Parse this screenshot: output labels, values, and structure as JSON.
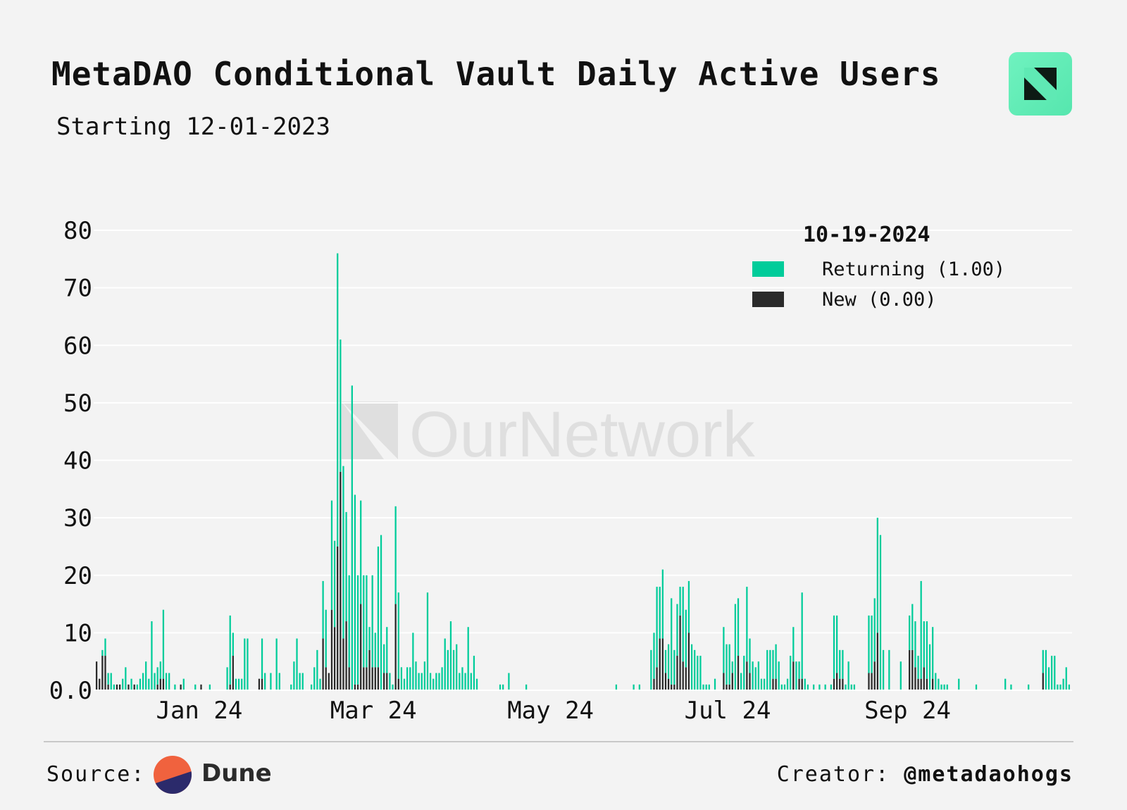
{
  "header": {
    "title": "MetaDAO Conditional Vault Daily Active Users",
    "subtitle": "Starting 12-01-2023",
    "logo_icon": "ournetwork-logo-icon"
  },
  "watermark": {
    "text": "OurNetwork"
  },
  "colors": {
    "returning": "#00cc9a",
    "new": "#2a2a2a",
    "background": "#f3f3f3",
    "grid": "#ffffff"
  },
  "legend": {
    "title": "10-19-2024",
    "items": [
      {
        "label": "Returning (1.00)",
        "color": "#00cc9a"
      },
      {
        "label": "New (0.00)",
        "color": "#2a2a2a"
      }
    ]
  },
  "footer": {
    "source_label": "Source:",
    "source_name": "Dune",
    "creator_label": "Creator:",
    "creator_handle": "@metadaohogs"
  },
  "chart_data": {
    "type": "bar",
    "stacked": true,
    "title": "MetaDAO Conditional Vault Daily Active Users",
    "subtitle": "Starting 12-01-2023",
    "xlabel": "",
    "ylabel": "",
    "ylim": [
      0,
      80
    ],
    "yticks": [
      "0.0",
      "10",
      "20",
      "30",
      "40",
      "50",
      "60",
      "70",
      "80"
    ],
    "xticks": [
      {
        "label": "Jan 24",
        "date": "2024-01-01"
      },
      {
        "label": "Mar 24",
        "date": "2024-03-01"
      },
      {
        "label": "May 24",
        "date": "2024-05-01"
      },
      {
        "label": "Jul 24",
        "date": "2024-07-01"
      },
      {
        "label": "Sep 24",
        "date": "2024-09-01"
      }
    ],
    "grid": true,
    "legend_position": "top-right",
    "series_names": [
      "Returning",
      "New"
    ],
    "points": [
      [
        "2023-12-01",
        0,
        5
      ],
      [
        "2023-12-02",
        0,
        2
      ],
      [
        "2023-12-03",
        1,
        6
      ],
      [
        "2023-12-04",
        3,
        6
      ],
      [
        "2023-12-05",
        2,
        1
      ],
      [
        "2023-12-06",
        3,
        0
      ],
      [
        "2023-12-07",
        1,
        0
      ],
      [
        "2023-12-08",
        0,
        1
      ],
      [
        "2023-12-09",
        0,
        1
      ],
      [
        "2023-12-10",
        2,
        0
      ],
      [
        "2023-12-11",
        4,
        0
      ],
      [
        "2023-12-12",
        0,
        1
      ],
      [
        "2023-12-13",
        2,
        0
      ],
      [
        "2023-12-14",
        0,
        1
      ],
      [
        "2023-12-15",
        1,
        0
      ],
      [
        "2023-12-16",
        2,
        0
      ],
      [
        "2023-12-17",
        3,
        0
      ],
      [
        "2023-12-18",
        5,
        0
      ],
      [
        "2023-12-19",
        2,
        0
      ],
      [
        "2023-12-20",
        12,
        0
      ],
      [
        "2023-12-21",
        3,
        0
      ],
      [
        "2023-12-22",
        3,
        1
      ],
      [
        "2023-12-23",
        3,
        2
      ],
      [
        "2023-12-24",
        12,
        2
      ],
      [
        "2023-12-25",
        3,
        0
      ],
      [
        "2023-12-26",
        3,
        0
      ],
      [
        "2023-12-28",
        1,
        0
      ],
      [
        "2023-12-30",
        0,
        1
      ],
      [
        "2023-12-31",
        2,
        0
      ],
      [
        "2024-01-04",
        1,
        0
      ],
      [
        "2024-01-06",
        0,
        1
      ],
      [
        "2024-01-09",
        1,
        0
      ],
      [
        "2024-01-15",
        4,
        0
      ],
      [
        "2024-01-16",
        12,
        1
      ],
      [
        "2024-01-17",
        4,
        6
      ],
      [
        "2024-01-18",
        2,
        0
      ],
      [
        "2024-01-19",
        2,
        0
      ],
      [
        "2024-01-20",
        2,
        0
      ],
      [
        "2024-01-21",
        9,
        0
      ],
      [
        "2024-01-22",
        9,
        0
      ],
      [
        "2024-01-26",
        0,
        2
      ],
      [
        "2024-01-27",
        7,
        2
      ],
      [
        "2024-01-28",
        3,
        0
      ],
      [
        "2024-01-30",
        3,
        0
      ],
      [
        "2024-02-01",
        9,
        0
      ],
      [
        "2024-02-02",
        3,
        0
      ],
      [
        "2024-02-06",
        1,
        0
      ],
      [
        "2024-02-07",
        5,
        0
      ],
      [
        "2024-02-08",
        9,
        0
      ],
      [
        "2024-02-09",
        3,
        0
      ],
      [
        "2024-02-10",
        3,
        0
      ],
      [
        "2024-02-13",
        1,
        0
      ],
      [
        "2024-02-14",
        4,
        0
      ],
      [
        "2024-02-15",
        7,
        0
      ],
      [
        "2024-02-16",
        2,
        0
      ],
      [
        "2024-02-17",
        10,
        9
      ],
      [
        "2024-02-18",
        10,
        4
      ],
      [
        "2024-02-19",
        0,
        3
      ],
      [
        "2024-02-20",
        19,
        14
      ],
      [
        "2024-02-21",
        15,
        11
      ],
      [
        "2024-02-22",
        51,
        25
      ],
      [
        "2024-02-23",
        23,
        38
      ],
      [
        "2024-02-24",
        30,
        9
      ],
      [
        "2024-02-25",
        19,
        12
      ],
      [
        "2024-02-26",
        16,
        4
      ],
      [
        "2024-02-27",
        53,
        0
      ],
      [
        "2024-02-28",
        33,
        1
      ],
      [
        "2024-02-29",
        19,
        1
      ],
      [
        "2024-03-01",
        18,
        15
      ],
      [
        "2024-03-02",
        16,
        4
      ],
      [
        "2024-03-03",
        16,
        4
      ],
      [
        "2024-03-04",
        4,
        7
      ],
      [
        "2024-03-05",
        16,
        4
      ],
      [
        "2024-03-06",
        6,
        4
      ],
      [
        "2024-03-07",
        21,
        4
      ],
      [
        "2024-03-08",
        27,
        0
      ],
      [
        "2024-03-09",
        5,
        3
      ],
      [
        "2024-03-10",
        8,
        3
      ],
      [
        "2024-03-11",
        3,
        0
      ],
      [
        "2024-03-12",
        1,
        0
      ],
      [
        "2024-03-13",
        17,
        15
      ],
      [
        "2024-03-14",
        15,
        2
      ],
      [
        "2024-03-15",
        4,
        0
      ],
      [
        "2024-03-16",
        2,
        0
      ],
      [
        "2024-03-17",
        4,
        0
      ],
      [
        "2024-03-18",
        4,
        0
      ],
      [
        "2024-03-19",
        10,
        0
      ],
      [
        "2024-03-20",
        5,
        0
      ],
      [
        "2024-03-21",
        3,
        0
      ],
      [
        "2024-03-22",
        3,
        0
      ],
      [
        "2024-03-23",
        5,
        0
      ],
      [
        "2024-03-24",
        17,
        0
      ],
      [
        "2024-03-25",
        3,
        0
      ],
      [
        "2024-03-26",
        2,
        0
      ],
      [
        "2024-03-27",
        3,
        0
      ],
      [
        "2024-03-28",
        3,
        0
      ],
      [
        "2024-03-29",
        4,
        0
      ],
      [
        "2024-03-30",
        9,
        0
      ],
      [
        "2024-03-31",
        7,
        0
      ],
      [
        "2024-04-01",
        12,
        0
      ],
      [
        "2024-04-02",
        7,
        0
      ],
      [
        "2024-04-03",
        8,
        0
      ],
      [
        "2024-04-04",
        3,
        0
      ],
      [
        "2024-04-05",
        4,
        0
      ],
      [
        "2024-04-06",
        3,
        0
      ],
      [
        "2024-04-07",
        11,
        0
      ],
      [
        "2024-04-08",
        3,
        0
      ],
      [
        "2024-04-09",
        6,
        0
      ],
      [
        "2024-04-10",
        2,
        0
      ],
      [
        "2024-04-18",
        1,
        0
      ],
      [
        "2024-04-19",
        1,
        0
      ],
      [
        "2024-04-21",
        3,
        0
      ],
      [
        "2024-04-27",
        1,
        0
      ],
      [
        "2024-05-28",
        1,
        0
      ],
      [
        "2024-06-03",
        1,
        0
      ],
      [
        "2024-06-05",
        1,
        0
      ],
      [
        "2024-06-09",
        7,
        0
      ],
      [
        "2024-06-10",
        8,
        2
      ],
      [
        "2024-06-11",
        14,
        4
      ],
      [
        "2024-06-12",
        9,
        9
      ],
      [
        "2024-06-13",
        12,
        9
      ],
      [
        "2024-06-14",
        4,
        3
      ],
      [
        "2024-06-15",
        6,
        2
      ],
      [
        "2024-06-16",
        15,
        1
      ],
      [
        "2024-06-17",
        6,
        1
      ],
      [
        "2024-06-18",
        9,
        6
      ],
      [
        "2024-06-19",
        5,
        13
      ],
      [
        "2024-06-20",
        13,
        5
      ],
      [
        "2024-06-21",
        10,
        4
      ],
      [
        "2024-06-22",
        9,
        10
      ],
      [
        "2024-06-23",
        8,
        0
      ],
      [
        "2024-06-24",
        7,
        0
      ],
      [
        "2024-06-25",
        6,
        0
      ],
      [
        "2024-06-26",
        6,
        0
      ],
      [
        "2024-06-27",
        1,
        0
      ],
      [
        "2024-06-28",
        1,
        0
      ],
      [
        "2024-06-29",
        1,
        0
      ],
      [
        "2024-07-01",
        2,
        0
      ],
      [
        "2024-07-04",
        8,
        3
      ],
      [
        "2024-07-05",
        7,
        1
      ],
      [
        "2024-07-06",
        7,
        1
      ],
      [
        "2024-07-07",
        2,
        3
      ],
      [
        "2024-07-08",
        15,
        0
      ],
      [
        "2024-07-09",
        10,
        6
      ],
      [
        "2024-07-10",
        3,
        0
      ],
      [
        "2024-07-11",
        6,
        0
      ],
      [
        "2024-07-12",
        13,
        5
      ],
      [
        "2024-07-13",
        6,
        3
      ],
      [
        "2024-07-14",
        5,
        0
      ],
      [
        "2024-07-15",
        4,
        0
      ],
      [
        "2024-07-16",
        5,
        0
      ],
      [
        "2024-07-17",
        2,
        0
      ],
      [
        "2024-07-18",
        2,
        0
      ],
      [
        "2024-07-19",
        7,
        0
      ],
      [
        "2024-07-20",
        7,
        0
      ],
      [
        "2024-07-21",
        5,
        2
      ],
      [
        "2024-07-22",
        6,
        2
      ],
      [
        "2024-07-23",
        5,
        0
      ],
      [
        "2024-07-24",
        1,
        0
      ],
      [
        "2024-07-25",
        1,
        0
      ],
      [
        "2024-07-26",
        2,
        0
      ],
      [
        "2024-07-27",
        6,
        0
      ],
      [
        "2024-07-28",
        6,
        5
      ],
      [
        "2024-07-29",
        5,
        0
      ],
      [
        "2024-07-30",
        3,
        2
      ],
      [
        "2024-07-31",
        15,
        2
      ],
      [
        "2024-08-01",
        2,
        0
      ],
      [
        "2024-08-02",
        1,
        0
      ],
      [
        "2024-08-04",
        1,
        0
      ],
      [
        "2024-08-06",
        1,
        0
      ],
      [
        "2024-08-08",
        1,
        0
      ],
      [
        "2024-08-10",
        1,
        0
      ],
      [
        "2024-08-11",
        11,
        2
      ],
      [
        "2024-08-12",
        10,
        3
      ],
      [
        "2024-08-13",
        5,
        2
      ],
      [
        "2024-08-14",
        5,
        2
      ],
      [
        "2024-08-15",
        1,
        0
      ],
      [
        "2024-08-16",
        5,
        0
      ],
      [
        "2024-08-17",
        1,
        0
      ],
      [
        "2024-08-18",
        1,
        0
      ],
      [
        "2024-08-23",
        10,
        3
      ],
      [
        "2024-08-24",
        10,
        3
      ],
      [
        "2024-08-25",
        11,
        5
      ],
      [
        "2024-08-26",
        20,
        10
      ],
      [
        "2024-08-27",
        27,
        0
      ],
      [
        "2024-08-28",
        7,
        0
      ],
      [
        "2024-08-30",
        7,
        0
      ],
      [
        "2024-09-03",
        5,
        0
      ],
      [
        "2024-09-06",
        6,
        7
      ],
      [
        "2024-09-07",
        8,
        7
      ],
      [
        "2024-09-08",
        8,
        4
      ],
      [
        "2024-09-09",
        4,
        2
      ],
      [
        "2024-09-10",
        17,
        2
      ],
      [
        "2024-09-11",
        8,
        4
      ],
      [
        "2024-09-12",
        10,
        2
      ],
      [
        "2024-09-13",
        8,
        0
      ],
      [
        "2024-09-14",
        9,
        2
      ],
      [
        "2024-09-15",
        3,
        0
      ],
      [
        "2024-09-16",
        2,
        0
      ],
      [
        "2024-09-17",
        1,
        0
      ],
      [
        "2024-09-18",
        1,
        0
      ],
      [
        "2024-09-19",
        1,
        0
      ],
      [
        "2024-09-23",
        2,
        0
      ],
      [
        "2024-09-29",
        1,
        0
      ],
      [
        "2024-10-09",
        2,
        0
      ],
      [
        "2024-10-11",
        1,
        0
      ],
      [
        "2024-10-17",
        1,
        0
      ],
      [
        "2024-10-22",
        4,
        3
      ],
      [
        "2024-10-23",
        7,
        0
      ],
      [
        "2024-10-24",
        4,
        0
      ],
      [
        "2024-10-25",
        6,
        0
      ],
      [
        "2024-10-26",
        6,
        0
      ],
      [
        "2024-10-27",
        1,
        0
      ],
      [
        "2024-10-28",
        1,
        0
      ],
      [
        "2024-10-29",
        2,
        0
      ],
      [
        "2024-10-30",
        4,
        0
      ],
      [
        "2024-10-31",
        1,
        0
      ]
    ]
  }
}
